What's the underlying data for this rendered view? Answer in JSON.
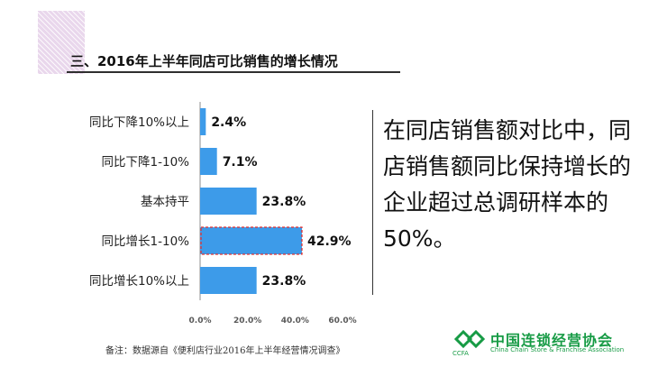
{
  "heading": "三、2016年上半年同店可比销售的增长情况",
  "callout": "在同店销售额对比中，同店销售额同比保持增长的企业超过总调研样本的50%。",
  "footnote": "备注：数据源自《便利店行业2016年上半年经营情况调查》",
  "logo": {
    "name": "中国连锁经营协会",
    "english": "China Chain Store & Franchise Association",
    "abbr": "CCFA",
    "color": "#179b45"
  },
  "chart_data": {
    "type": "bar",
    "orientation": "horizontal",
    "categories": [
      "同比下降10%以上",
      "同比下降1-10%",
      "基本持平",
      "同比增长1-10%",
      "同比增长10%以上"
    ],
    "values": [
      2.4,
      7.1,
      23.8,
      42.9,
      23.8
    ],
    "value_labels": [
      "2.4%",
      "7.1%",
      "23.8%",
      "42.9%",
      "23.8%"
    ],
    "xlim": [
      0,
      60
    ],
    "xticks": [
      0,
      20,
      40,
      60
    ],
    "xtick_labels": [
      "0.0%",
      "20.0%",
      "40.0%",
      "60.0%"
    ],
    "highlighted_category": "同比增长1-10%",
    "bar_color": "#3d9be9",
    "highlight_border_color": "#e03131",
    "grid": false
  }
}
